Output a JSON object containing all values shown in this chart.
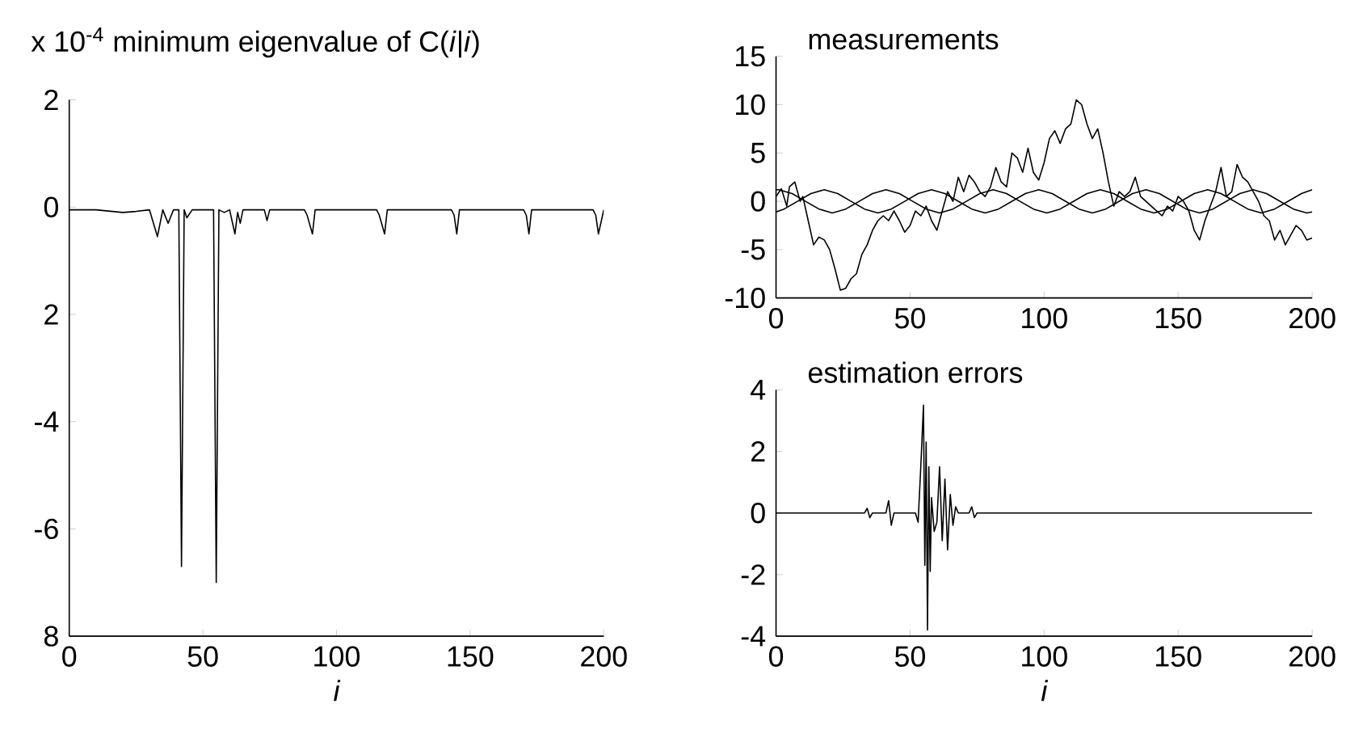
{
  "chart_data": [
    {
      "type": "line",
      "title": "x 10$^{-4}$ minimum eigenvalue of C(*i*|*i*)",
      "xlabel": "i",
      "series": [
        {
          "color": "#000000",
          "x": [
            0,
            10,
            20,
            25,
            30,
            33,
            35,
            37,
            39,
            41,
            42,
            43,
            44,
            46,
            54,
            55,
            56,
            58,
            60,
            62,
            63,
            64,
            65,
            73,
            74,
            75,
            88,
            89,
            91,
            92,
            115,
            116,
            118,
            119,
            143,
            144,
            145,
            146,
            170,
            171,
            172,
            173,
            196,
            197,
            198,
            200
          ],
          "values": [
            -0.05,
            -0.05,
            -0.1,
            -0.08,
            -0.05,
            -0.55,
            -0.05,
            -0.3,
            -0.05,
            -0.05,
            -6.7,
            -0.05,
            -0.2,
            -0.05,
            -0.05,
            -7,
            -0.05,
            -0.1,
            -0.05,
            -0.5,
            -0.1,
            -0.3,
            -0.05,
            -0.05,
            -0.25,
            -0.05,
            -0.05,
            -0.15,
            -0.5,
            -0.05,
            -0.05,
            -0.15,
            -0.5,
            -0.05,
            -0.05,
            -0.15,
            -0.5,
            -0.05,
            -0.05,
            -0.15,
            -0.5,
            -0.05,
            -0.05,
            -0.15,
            -0.5,
            -0.05
          ]
        }
      ],
      "xlim": [
        0,
        200
      ],
      "ylim": [
        -8,
        2
      ],
      "xticks": [
        0,
        50,
        100,
        150,
        200
      ],
      "yticks": [
        {
          "value": -8,
          "label": "8"
        },
        -6,
        -4,
        {
          "value": -2,
          "label": "2"
        },
        0,
        2
      ]
    },
    {
      "type": "line",
      "title": "measurements",
      "series": [
        {
          "color": "#000000",
          "x": [
            0,
            2,
            4,
            5,
            7,
            9,
            10,
            12,
            14,
            16,
            18,
            20,
            22,
            24,
            26,
            28,
            30,
            32,
            34,
            36,
            38,
            40,
            42,
            44,
            46,
            48,
            50,
            52,
            54,
            56,
            58,
            60,
            62,
            64,
            66,
            68,
            70,
            72,
            74,
            76,
            78,
            80,
            82,
            84,
            86,
            88,
            90,
            92,
            94,
            96,
            98,
            100,
            102,
            104,
            106,
            108,
            110,
            112,
            114,
            116,
            118,
            120,
            122,
            124,
            126,
            128,
            130,
            132,
            134,
            136,
            138,
            140,
            142,
            144,
            146,
            148,
            150,
            152,
            154,
            156,
            158,
            160,
            162,
            164,
            166,
            168,
            170,
            172,
            174,
            176,
            178,
            180,
            182,
            184,
            186,
            188,
            190,
            192,
            194,
            196,
            198,
            200
          ],
          "values": [
            0.5,
            1.3,
            -0.5,
            1.5,
            2,
            0,
            0.5,
            -2,
            -4.5,
            -3.7,
            -4,
            -5,
            -7,
            -9.2,
            -9,
            -8,
            -7.5,
            -5.5,
            -4.5,
            -3,
            -2,
            -1.5,
            -2,
            -1,
            -2,
            -3.2,
            -2.5,
            -1,
            -1.5,
            -0.5,
            -2,
            -3,
            -1,
            1,
            0,
            2.5,
            1,
            2.7,
            2,
            1,
            0.5,
            1.5,
            3.5,
            2,
            1.5,
            5,
            4.5,
            3,
            5.5,
            3,
            2.2,
            4,
            6.5,
            7.3,
            6,
            7.5,
            8,
            10.5,
            10,
            8,
            6.5,
            7.5,
            5,
            2,
            -0.5,
            1,
            0.5,
            1,
            2.5,
            0.5,
            0,
            -0.5,
            -1,
            -1.5,
            -0.5,
            -1,
            0.5,
            0,
            -1,
            -3,
            -4,
            -2,
            -0.5,
            1,
            3.5,
            0.5,
            1,
            3.8,
            2.5,
            2,
            1,
            0,
            -1.5,
            -2,
            -4,
            -3,
            -4.5,
            -3.5,
            -2.5,
            -3,
            -4,
            -3.8
          ]
        },
        {
          "color": "#000000",
          "x": [
            0,
            3,
            8,
            13,
            18,
            23,
            28,
            33,
            38,
            43,
            48,
            53,
            58,
            63,
            68,
            73,
            78,
            83,
            88,
            93,
            98,
            103,
            108,
            113,
            118,
            123,
            128,
            133,
            138,
            143,
            148,
            153,
            158,
            163,
            168,
            173,
            178,
            183,
            188,
            193,
            198,
            200
          ],
          "values": [
            -1.1,
            -0.8,
            0,
            0.8,
            1.2,
            0.8,
            0,
            -0.8,
            -1.2,
            -0.8,
            0,
            0.8,
            1.2,
            0.8,
            0,
            -0.8,
            -1.2,
            -0.8,
            0,
            0.8,
            1.2,
            0.8,
            0,
            -0.8,
            -1.2,
            -0.8,
            0,
            0.8,
            1.2,
            0.8,
            0,
            -0.8,
            -1.2,
            -0.8,
            0,
            0.8,
            1.2,
            0.8,
            0,
            -0.8,
            -1.2,
            -1.1
          ]
        },
        {
          "color": "#000000",
          "x": [
            0,
            1,
            6,
            11,
            16,
            21,
            26,
            31,
            36,
            41,
            46,
            51,
            56,
            61,
            66,
            71,
            76,
            81,
            86,
            91,
            96,
            101,
            106,
            111,
            116,
            121,
            126,
            131,
            136,
            141,
            146,
            151,
            156,
            161,
            166,
            171,
            176,
            181,
            186,
            191,
            196,
            200
          ],
          "values": [
            1.2,
            1.2,
            0.8,
            0,
            -0.8,
            -1.2,
            -0.8,
            0,
            0.8,
            1.2,
            0.8,
            0,
            -0.8,
            -1.2,
            -0.8,
            0,
            0.8,
            1.2,
            0.8,
            0,
            -0.8,
            -1.2,
            -0.8,
            0,
            0.8,
            1.2,
            0.8,
            0,
            -0.8,
            -1.2,
            -0.8,
            0,
            0.8,
            1.2,
            0.8,
            0,
            -0.8,
            -1.2,
            -0.8,
            0,
            0.8,
            1.2
          ]
        }
      ],
      "xlim": [
        0,
        200
      ],
      "ylim": [
        -10,
        15
      ],
      "xticks": [
        0,
        50,
        100,
        150,
        200
      ],
      "yticks": [
        -10,
        -5,
        0,
        5,
        10,
        15
      ]
    },
    {
      "type": "line",
      "title": "estimation errors",
      "xlabel": "i",
      "series": [
        {
          "color": "#000000",
          "x": [
            0,
            10,
            20,
            30,
            33,
            34,
            35,
            36,
            41,
            42,
            43,
            44,
            52,
            53,
            54,
            55,
            55.5,
            56,
            56.5,
            57,
            57.5,
            58,
            59,
            60,
            61,
            62,
            63,
            64,
            65,
            66,
            67,
            68,
            72,
            73,
            74,
            75,
            100,
            150,
            200
          ],
          "values": [
            0,
            0,
            0,
            0,
            0,
            0.15,
            -0.15,
            0,
            0,
            0.4,
            -0.4,
            0,
            0,
            -0.3,
            1.5,
            3.5,
            -1.7,
            2.3,
            -3.8,
            1.5,
            -1.9,
            0.5,
            -0.6,
            -0.3,
            1.5,
            -0.9,
            1.1,
            -1.2,
            0.6,
            -0.4,
            0.2,
            0,
            0,
            0.2,
            -0.15,
            0,
            0,
            0,
            0
          ]
        }
      ],
      "xlim": [
        0,
        200
      ],
      "ylim": [
        -4,
        4
      ],
      "xticks": [
        0,
        50,
        100,
        150,
        200
      ],
      "yticks": [
        -4,
        -2,
        0,
        2,
        4
      ]
    }
  ]
}
